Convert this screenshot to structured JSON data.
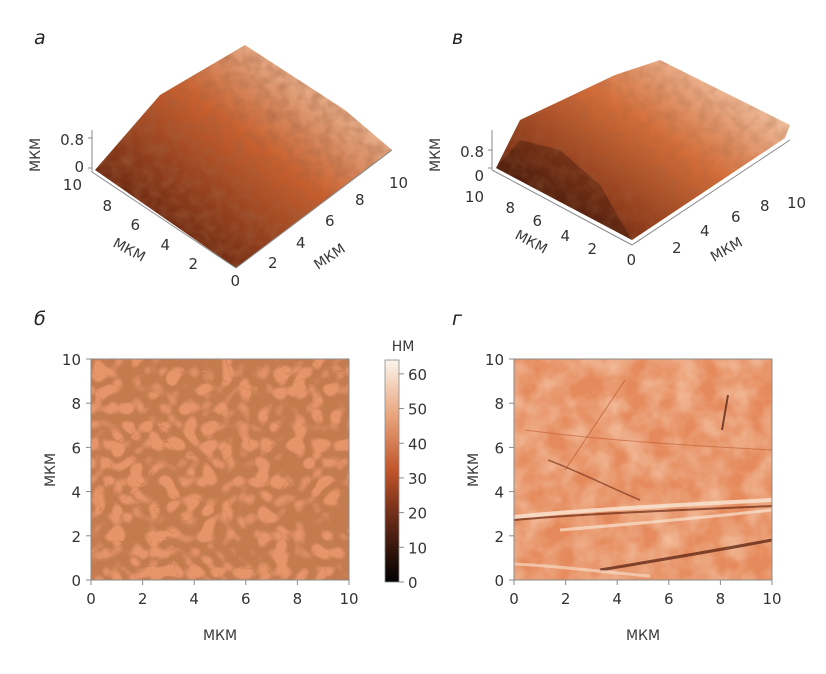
{
  "panels": {
    "a": {
      "label": "а",
      "z_unit": "МКМ",
      "z_ticks": [
        "0.8",
        "0"
      ],
      "x_unit": "МКМ",
      "y_unit": "МКМ",
      "x_ticks": [
        "0",
        "2",
        "4",
        "6",
        "8",
        "10"
      ],
      "y_ticks": [
        "0",
        "2",
        "4",
        "6",
        "8",
        "10"
      ]
    },
    "v": {
      "label": "в",
      "z_unit": "МКМ",
      "z_ticks": [
        "0.8",
        "0"
      ],
      "x_unit": "МКМ",
      "y_unit": "МКМ",
      "x_ticks": [
        "0",
        "2",
        "4",
        "6",
        "8",
        "10"
      ],
      "y_ticks": [
        "0",
        "2",
        "4",
        "6",
        "8",
        "10"
      ]
    },
    "b": {
      "label": "б",
      "x_unit": "МКМ",
      "y_unit": "МКМ",
      "x_ticks": [
        "0",
        "2",
        "4",
        "6",
        "8",
        "10"
      ],
      "y_ticks": [
        "0",
        "2",
        "4",
        "6",
        "8",
        "10"
      ]
    },
    "g": {
      "label": "г",
      "x_unit": "МКМ",
      "y_unit": "МКМ",
      "x_ticks": [
        "0",
        "2",
        "4",
        "6",
        "8",
        "10"
      ],
      "y_ticks": [
        "0",
        "2",
        "4",
        "6",
        "8",
        "10"
      ]
    }
  },
  "colorbar": {
    "unit": "НМ",
    "ticks": [
      "60",
      "50",
      "40",
      "30",
      "20",
      "10",
      "0"
    ],
    "range": [
      0,
      64
    ]
  },
  "colors": {
    "dark": "#1a0e08",
    "mid": "#c0542a",
    "light": "#f5e9dc",
    "background": "#ffffff",
    "axis": "#8a8a8a"
  }
}
